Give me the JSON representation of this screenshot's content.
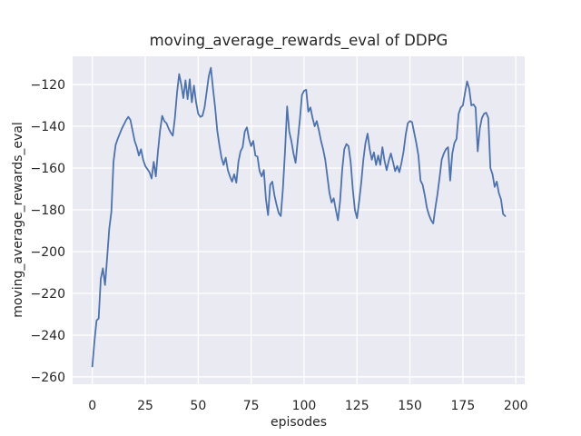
{
  "figure": {
    "title": "moving_average_rewards_eval of DDPG",
    "xlabel": "episodes",
    "ylabel": "moving_average_rewards_eval",
    "outer_bg": "#ffffff",
    "plot_bg": "#eaeaf2",
    "grid_color": "#ffffff",
    "line_color": "#4c72b0",
    "text_color": "#262626"
  },
  "chart_data": {
    "type": "line",
    "title": "moving_average_rewards_eval of DDPG",
    "xlabel": "episodes",
    "ylabel": "moving_average_rewards_eval",
    "legend": false,
    "grid": true,
    "xticks": [
      0,
      25,
      50,
      75,
      100,
      125,
      150,
      175,
      200
    ],
    "yticks": [
      -120,
      -140,
      -160,
      -180,
      -200,
      -220,
      -240,
      -260
    ],
    "xlim": [
      -9.3,
      204.2
    ],
    "ylim": [
      -263.5,
      -106.5
    ],
    "x_start": 0,
    "x_step": 1,
    "series": [
      {
        "name": "moving_average_rewards_eval",
        "values": [
          -255,
          -243,
          -233,
          -232,
          -213,
          -208,
          -216,
          -203,
          -189,
          -181,
          -157,
          -149,
          -146,
          -143.5,
          -141,
          -139,
          -137,
          -135.5,
          -137,
          -142,
          -147,
          -150,
          -154,
          -151,
          -156,
          -159,
          -160.5,
          -162,
          -165,
          -157,
          -164,
          -152,
          -142,
          -135,
          -137.5,
          -138.5,
          -141,
          -143,
          -144.5,
          -136,
          -124,
          -115,
          -120,
          -126.5,
          -118,
          -127,
          -117.5,
          -128.5,
          -120.5,
          -128.5,
          -134,
          -135.5,
          -135,
          -131,
          -123.5,
          -116,
          -112,
          -122,
          -131,
          -142,
          -149,
          -155,
          -158.5,
          -155,
          -161,
          -164,
          -166.5,
          -163,
          -167,
          -157,
          -152,
          -150,
          -142.5,
          -140.5,
          -146,
          -149.5,
          -147,
          -154,
          -154.5,
          -161.5,
          -164,
          -161,
          -175,
          -182.5,
          -168,
          -166.5,
          -173,
          -177.5,
          -181.5,
          -183,
          -170,
          -152,
          -130.5,
          -142.5,
          -147,
          -153,
          -157.5,
          -147,
          -137,
          -125,
          -123,
          -122.5,
          -133,
          -131,
          -136,
          -140,
          -137.5,
          -142,
          -147,
          -151,
          -156,
          -164,
          -172,
          -176.5,
          -174.5,
          -180,
          -185,
          -176,
          -161,
          -151,
          -148.5,
          -149.5,
          -157,
          -170,
          -180,
          -184,
          -176,
          -167,
          -156,
          -148,
          -143.5,
          -151,
          -156,
          -152.5,
          -158.5,
          -154,
          -158.5,
          -150,
          -156.5,
          -161,
          -156.5,
          -153,
          -157,
          -161.5,
          -159,
          -162,
          -157.5,
          -152,
          -144,
          -138.5,
          -137.5,
          -138,
          -143,
          -148,
          -154,
          -166,
          -168,
          -173,
          -179,
          -182.5,
          -185,
          -186.5,
          -179,
          -172.5,
          -164.5,
          -156,
          -153,
          -151,
          -150,
          -166,
          -153,
          -148,
          -146,
          -134,
          -131,
          -130,
          -124,
          -118.5,
          -122,
          -130,
          -129.5,
          -131,
          -152,
          -141,
          -136,
          -134,
          -133.5,
          -136,
          -160,
          -163,
          -169,
          -166.5,
          -172,
          -175,
          -182,
          -183
        ]
      }
    ]
  }
}
